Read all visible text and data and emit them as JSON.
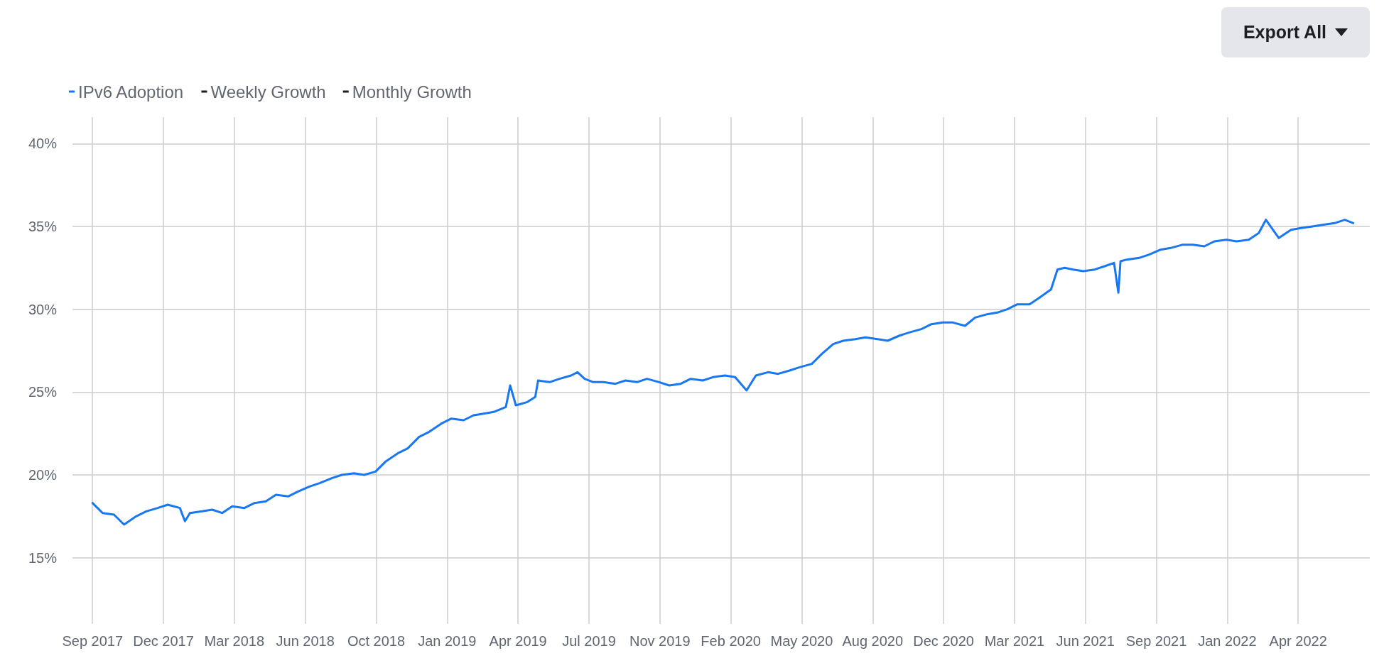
{
  "chart_data": {
    "type": "line",
    "annotations": [
      "Export All"
    ],
    "xlim": [
      "2017-08-04",
      "2022-07-20"
    ],
    "xticks": [
      {
        "value": "2017-09-01",
        "label": "Sep 2017"
      },
      {
        "value": "2017-12-09",
        "label": "Dec 2017"
      },
      {
        "value": "2018-03-18",
        "label": "Mar 2018"
      },
      {
        "value": "2018-06-25",
        "label": "Jun 2018"
      },
      {
        "value": "2018-10-02",
        "label": "Oct 2018"
      },
      {
        "value": "2019-01-09",
        "label": "Jan 2019"
      },
      {
        "value": "2019-04-18",
        "label": "Apr 2019"
      },
      {
        "value": "2019-07-26",
        "label": "Jul 2019"
      },
      {
        "value": "2019-11-02",
        "label": "Nov 2019"
      },
      {
        "value": "2020-02-09",
        "label": "Feb 2020"
      },
      {
        "value": "2020-05-18",
        "label": "May 2020"
      },
      {
        "value": "2020-08-25",
        "label": "Aug 2020"
      },
      {
        "value": "2020-12-02",
        "label": "Dec 2020"
      },
      {
        "value": "2021-03-11",
        "label": "Mar 2021"
      },
      {
        "value": "2021-06-18",
        "label": "Jun 2021"
      },
      {
        "value": "2021-09-25",
        "label": "Sep 2021"
      },
      {
        "value": "2022-01-02",
        "label": "Jan 2022"
      },
      {
        "value": "2022-04-11",
        "label": "Apr 2022"
      }
    ],
    "ylim": [
      11,
      41.6
    ],
    "yticks": [
      {
        "value": 15,
        "label": "15%"
      },
      {
        "value": 20,
        "label": "20%"
      },
      {
        "value": 25,
        "label": "25%"
      },
      {
        "value": 30,
        "label": "30%"
      },
      {
        "value": 35,
        "label": "35%"
      },
      {
        "value": 40,
        "label": "40%"
      }
    ],
    "grid": true,
    "legend": "top left",
    "marker": "none",
    "line_style": "solid",
    "series": [
      {
        "name": "IPv6 Adoption",
        "color": "#1877f2",
        "x": [
          "2017-09-01",
          "2017-09-15",
          "2017-10-01",
          "2017-10-15",
          "2017-11-01",
          "2017-11-15",
          "2017-12-01",
          "2017-12-15",
          "2018-01-01",
          "2018-01-08",
          "2018-01-15",
          "2018-02-01",
          "2018-02-15",
          "2018-03-01",
          "2018-03-15",
          "2018-04-01",
          "2018-04-15",
          "2018-05-01",
          "2018-05-15",
          "2018-06-01",
          "2018-06-15",
          "2018-07-01",
          "2018-07-15",
          "2018-08-01",
          "2018-08-15",
          "2018-09-01",
          "2018-09-15",
          "2018-10-01",
          "2018-10-15",
          "2018-11-01",
          "2018-11-15",
          "2018-12-01",
          "2018-12-15",
          "2019-01-01",
          "2019-01-15",
          "2019-02-01",
          "2019-02-15",
          "2019-03-01",
          "2019-03-15",
          "2019-04-01",
          "2019-04-07",
          "2019-04-15",
          "2019-05-01",
          "2019-05-12",
          "2019-05-16",
          "2019-06-01",
          "2019-06-15",
          "2019-07-01",
          "2019-07-10",
          "2019-07-20",
          "2019-08-01",
          "2019-08-15",
          "2019-09-01",
          "2019-09-15",
          "2019-10-01",
          "2019-10-15",
          "2019-11-01",
          "2019-11-15",
          "2019-12-01",
          "2019-12-15",
          "2020-01-01",
          "2020-01-15",
          "2020-02-01",
          "2020-02-15",
          "2020-03-02",
          "2020-03-15",
          "2020-04-01",
          "2020-04-15",
          "2020-05-01",
          "2020-05-15",
          "2020-06-01",
          "2020-06-15",
          "2020-07-01",
          "2020-07-15",
          "2020-08-01",
          "2020-08-15",
          "2020-09-01",
          "2020-09-15",
          "2020-10-01",
          "2020-10-15",
          "2020-11-01",
          "2020-11-15",
          "2020-12-01",
          "2020-12-15",
          "2021-01-01",
          "2021-01-15",
          "2021-02-01",
          "2021-02-15",
          "2021-03-01",
          "2021-03-15",
          "2021-04-01",
          "2021-04-15",
          "2021-05-01",
          "2021-05-10",
          "2021-05-20",
          "2021-06-01",
          "2021-06-15",
          "2021-07-01",
          "2021-07-15",
          "2021-07-28",
          "2021-08-03",
          "2021-08-06",
          "2021-08-15",
          "2021-09-01",
          "2021-09-15",
          "2021-10-01",
          "2021-10-15",
          "2021-11-01",
          "2021-11-15",
          "2021-12-01",
          "2021-12-15",
          "2022-01-01",
          "2022-01-15",
          "2022-02-01",
          "2022-02-15",
          "2022-02-25",
          "2022-03-15",
          "2022-04-01",
          "2022-04-15",
          "2022-05-01",
          "2022-05-15",
          "2022-06-01",
          "2022-06-15",
          "2022-06-27"
        ],
        "values": [
          18.3,
          17.7,
          17.6,
          17.0,
          17.5,
          17.8,
          18.0,
          18.2,
          18.0,
          17.2,
          17.7,
          17.8,
          17.9,
          17.7,
          18.1,
          18.0,
          18.3,
          18.4,
          18.8,
          18.7,
          19.0,
          19.3,
          19.5,
          19.8,
          20.0,
          20.1,
          20.0,
          20.2,
          20.8,
          21.3,
          21.6,
          22.3,
          22.6,
          23.1,
          23.4,
          23.3,
          23.6,
          23.7,
          23.8,
          24.1,
          25.4,
          24.2,
          24.4,
          24.7,
          25.7,
          25.6,
          25.8,
          26.0,
          26.2,
          25.8,
          25.6,
          25.6,
          25.5,
          25.7,
          25.6,
          25.8,
          25.6,
          25.4,
          25.5,
          25.8,
          25.7,
          25.9,
          26.0,
          25.9,
          25.1,
          26.0,
          26.2,
          26.1,
          26.3,
          26.5,
          26.7,
          27.3,
          27.9,
          28.1,
          28.2,
          28.3,
          28.2,
          28.1,
          28.4,
          28.6,
          28.8,
          29.1,
          29.2,
          29.2,
          29.0,
          29.5,
          29.7,
          29.8,
          30.0,
          30.3,
          30.3,
          30.7,
          31.2,
          32.4,
          32.5,
          32.4,
          32.3,
          32.4,
          32.6,
          32.8,
          31.0,
          32.9,
          33.0,
          33.1,
          33.3,
          33.6,
          33.7,
          33.9,
          33.9,
          33.8,
          34.1,
          34.2,
          34.1,
          34.2,
          34.6,
          35.4,
          34.3,
          34.8,
          34.9,
          35.0,
          35.1,
          35.2,
          35.4,
          35.2
        ]
      },
      {
        "name": "Weekly Growth",
        "color": "#1c1e21"
      },
      {
        "name": "Monthly Growth",
        "color": "#1c1e21"
      }
    ]
  }
}
